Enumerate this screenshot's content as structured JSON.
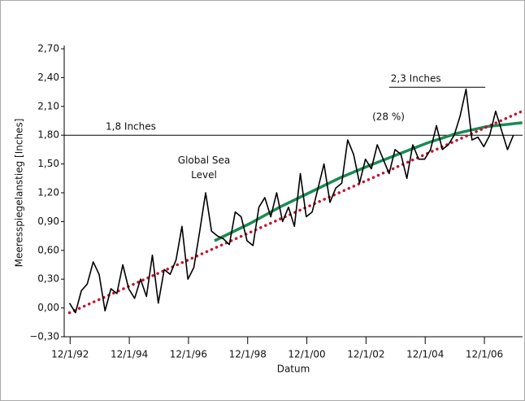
{
  "chart_data": {
    "type": "line",
    "y_label": "Meeresspiegelanstieg [Inches]",
    "x_label": "Datum",
    "annotations": [
      "Global Sea Level",
      "(28 %)"
    ],
    "reference_lines": [
      {
        "value": 1.8,
        "label": "1,8 Inches"
      },
      {
        "value": 2.3,
        "label": "2,3 Inches",
        "x": [
          2003.7,
          2006.95
        ]
      }
    ],
    "xlim": [
      1992.72,
      2008.21
    ],
    "xticks": [
      {
        "value": 1992.92,
        "label": "12/1/92"
      },
      {
        "value": 1994.92,
        "label": "12/1/94"
      },
      {
        "value": 1996.92,
        "label": "12/1/96"
      },
      {
        "value": 1998.92,
        "label": "12/1/98"
      },
      {
        "value": 2000.92,
        "label": "12/1/00"
      },
      {
        "value": 2002.92,
        "label": "12/1/02"
      },
      {
        "value": 2004.92,
        "label": "12/1/04"
      },
      {
        "value": 2006.92,
        "label": "12/1/06"
      }
    ],
    "ylim": [
      -0.3,
      2.7
    ],
    "yticks": [
      {
        "value": -0.3,
        "label": "−0,30"
      },
      {
        "value": 0,
        "label": "0,00"
      },
      {
        "value": 0.3,
        "label": "0,30"
      },
      {
        "value": 0.6,
        "label": "0,60"
      },
      {
        "value": 0.9,
        "label": "0,90"
      },
      {
        "value": 1.2,
        "label": "1,20"
      },
      {
        "value": 1.5,
        "label": "1,50"
      },
      {
        "value": 1.8,
        "label": "1,80"
      },
      {
        "value": 2.1,
        "label": "2,10"
      },
      {
        "value": 2.4,
        "label": "2,40"
      },
      {
        "value": 2.7,
        "label": "2,70"
      }
    ],
    "series": [
      {
        "color": "#000000",
        "style": "solid",
        "width": 1.6,
        "x": [
          1992.9,
          1993.1,
          1993.3,
          1993.5,
          1993.7,
          1993.9,
          1994.1,
          1994.3,
          1994.5,
          1994.7,
          1994.9,
          1995.1,
          1995.3,
          1995.5,
          1995.7,
          1995.9,
          1996.1,
          1996.3,
          1996.5,
          1996.7,
          1996.9,
          1997.1,
          1997.3,
          1997.5,
          1997.7,
          1997.9,
          1998.1,
          1998.3,
          1998.5,
          1998.7,
          1998.9,
          1999.1,
          1999.3,
          1999.5,
          1999.7,
          1999.9,
          2000.1,
          2000.3,
          2000.5,
          2000.7,
          2000.9,
          2001.1,
          2001.3,
          2001.5,
          2001.7,
          2001.9,
          2002.1,
          2002.3,
          2002.5,
          2002.7,
          2002.9,
          2003.1,
          2003.3,
          2003.5,
          2003.7,
          2003.9,
          2004.1,
          2004.3,
          2004.5,
          2004.7,
          2004.9,
          2005.1,
          2005.3,
          2005.5,
          2005.7,
          2005.9,
          2006.1,
          2006.3,
          2006.5,
          2006.7,
          2006.9,
          2007.1,
          2007.3,
          2007.5,
          2007.7,
          2007.9
        ],
        "values": [
          0.05,
          -0.05,
          0.18,
          0.25,
          0.48,
          0.35,
          -0.03,
          0.2,
          0.15,
          0.45,
          0.2,
          0.1,
          0.3,
          0.12,
          0.55,
          0.05,
          0.4,
          0.35,
          0.5,
          0.85,
          0.3,
          0.42,
          0.8,
          1.2,
          0.8,
          0.75,
          0.72,
          0.66,
          1.0,
          0.95,
          0.7,
          0.65,
          1.05,
          1.15,
          0.95,
          1.2,
          0.9,
          1.05,
          0.85,
          1.4,
          0.95,
          1.0,
          1.25,
          1.5,
          1.1,
          1.25,
          1.3,
          1.75,
          1.6,
          1.3,
          1.55,
          1.45,
          1.7,
          1.55,
          1.4,
          1.65,
          1.6,
          1.35,
          1.7,
          1.55,
          1.55,
          1.65,
          1.9,
          1.65,
          1.7,
          1.8,
          2.0,
          2.28,
          1.75,
          1.78,
          1.68,
          1.8,
          2.05,
          1.85,
          1.65,
          1.8
        ]
      },
      {
        "color": "#c8102e",
        "style": "dotted",
        "width": 3.5,
        "x": [
          1992.9,
          2008.2
        ],
        "values": [
          -0.05,
          2.05
        ]
      },
      {
        "color": "#1a8a55",
        "style": "solid",
        "width": 3.5,
        "x": [
          1997.8,
          1999,
          2000,
          2001,
          2002,
          2003,
          2004,
          2005,
          2006,
          2007,
          2008.2
        ],
        "values": [
          0.7,
          0.88,
          1.05,
          1.2,
          1.35,
          1.48,
          1.6,
          1.72,
          1.82,
          1.89,
          1.93
        ]
      }
    ]
  }
}
